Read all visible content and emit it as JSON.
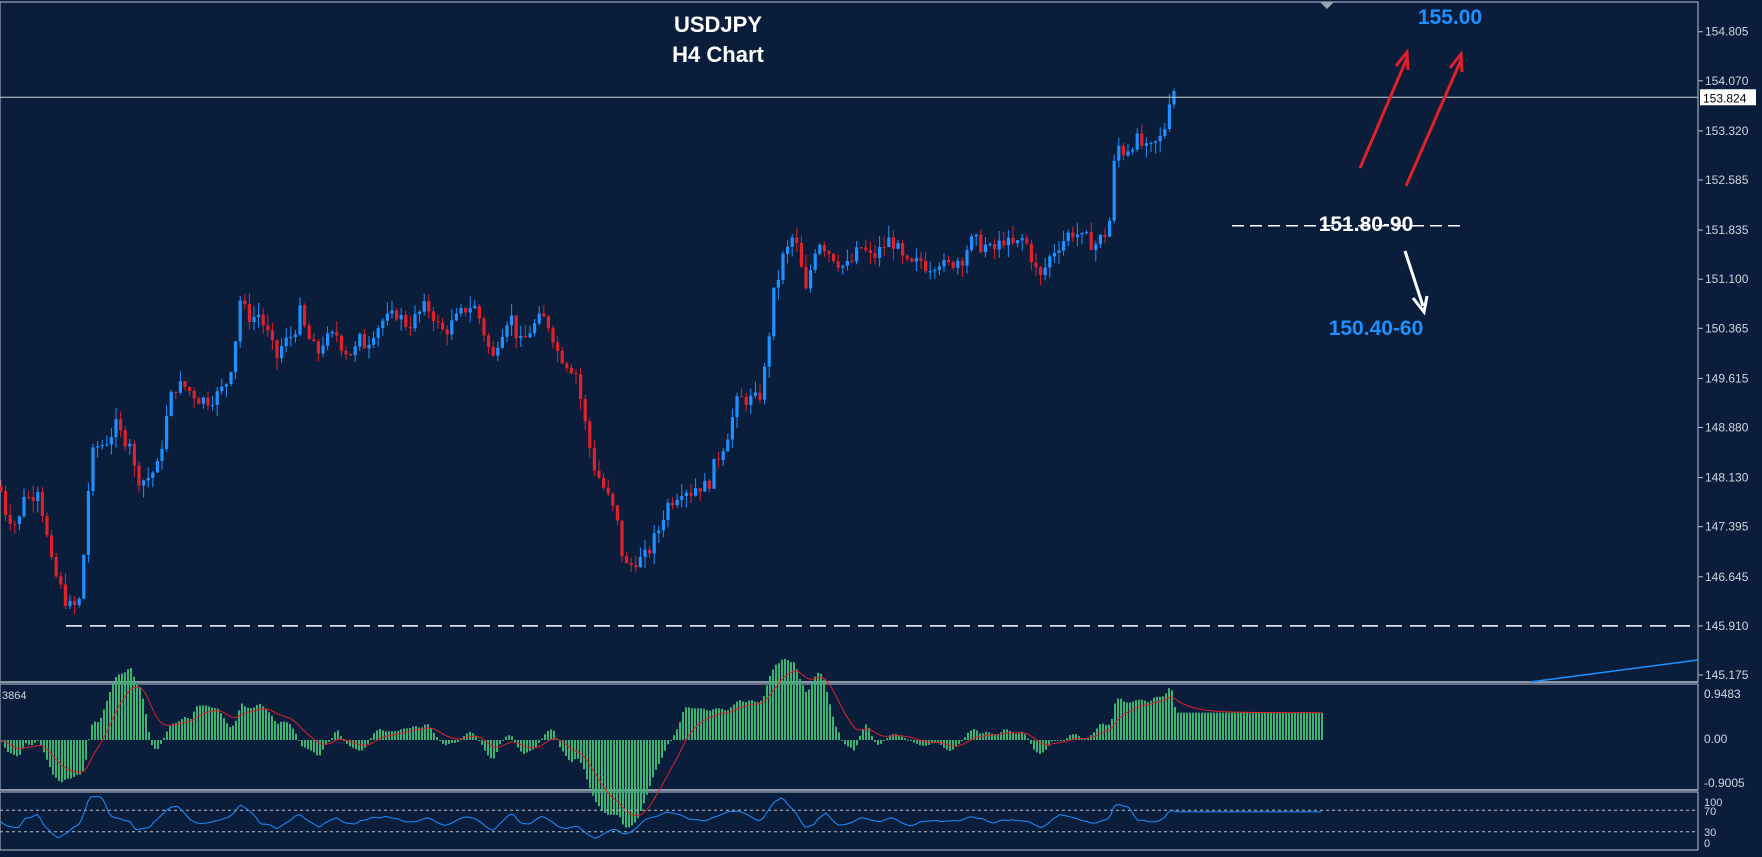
{
  "chart_data": {
    "type": "candlestick",
    "title": "USDJPY",
    "subtitle": "H4 Chart",
    "price_axis": {
      "ticks": [
        "154.805",
        "154.070",
        "153.320",
        "152.585",
        "151.835",
        "151.100",
        "150.365",
        "149.615",
        "148.880",
        "148.130",
        "147.395",
        "146.645",
        "145.910",
        "145.175"
      ],
      "range": [
        145.07,
        155.25
      ],
      "current_price": "153.824"
    },
    "annotations": {
      "target_up": "155.00",
      "support": "151.80-90",
      "target_down": "150.40-60"
    },
    "levels": {
      "support": 151.9,
      "low": 145.91,
      "current": 153.824
    },
    "series": {
      "close_path": [
        [
          0,
          148.0
        ],
        [
          6,
          147.6
        ],
        [
          12,
          147.5
        ],
        [
          18,
          147.4
        ],
        [
          24,
          147.9
        ],
        [
          30,
          147.8
        ],
        [
          38,
          148.0
        ],
        [
          45,
          147.4
        ],
        [
          52,
          146.8
        ],
        [
          60,
          146.5
        ],
        [
          68,
          146.2
        ],
        [
          75,
          146.2
        ],
        [
          80,
          146.3
        ],
        [
          85,
          147.2
        ],
        [
          90,
          148.3
        ],
        [
          95,
          148.6
        ],
        [
          100,
          148.6
        ],
        [
          108,
          148.7
        ],
        [
          116,
          148.9
        ],
        [
          124,
          148.7
        ],
        [
          130,
          148.7
        ],
        [
          135,
          148.2
        ],
        [
          140,
          148.1
        ],
        [
          146,
          148.1
        ],
        [
          152,
          148.2
        ],
        [
          158,
          148.3
        ],
        [
          164,
          148.8
        ],
        [
          170,
          149.3
        ],
        [
          176,
          149.5
        ],
        [
          184,
          149.5
        ],
        [
          192,
          149.4
        ],
        [
          200,
          149.3
        ],
        [
          210,
          149.3
        ],
        [
          220,
          149.4
        ],
        [
          228,
          149.6
        ],
        [
          234,
          150.0
        ],
        [
          240,
          150.8
        ],
        [
          246,
          150.6
        ],
        [
          252,
          150.5
        ],
        [
          258,
          150.6
        ],
        [
          264,
          150.4
        ],
        [
          270,
          150.2
        ],
        [
          276,
          149.9
        ],
        [
          282,
          150.1
        ],
        [
          288,
          150.2
        ],
        [
          294,
          150.3
        ],
        [
          300,
          150.6
        ],
        [
          306,
          150.3
        ],
        [
          312,
          150.1
        ],
        [
          318,
          150.0
        ],
        [
          324,
          150.2
        ],
        [
          330,
          150.2
        ],
        [
          336,
          150.3
        ],
        [
          342,
          150.1
        ],
        [
          348,
          150.0
        ],
        [
          354,
          150.0
        ],
        [
          360,
          150.2
        ],
        [
          366,
          150.1
        ],
        [
          372,
          150.3
        ],
        [
          378,
          150.4
        ],
        [
          384,
          150.5
        ],
        [
          390,
          150.5
        ],
        [
          396,
          150.6
        ],
        [
          402,
          150.5
        ],
        [
          408,
          150.4
        ],
        [
          414,
          150.5
        ],
        [
          420,
          150.6
        ],
        [
          426,
          150.7
        ],
        [
          432,
          150.6
        ],
        [
          438,
          150.4
        ],
        [
          444,
          150.3
        ],
        [
          450,
          150.4
        ],
        [
          456,
          150.5
        ],
        [
          462,
          150.6
        ],
        [
          468,
          150.7
        ],
        [
          474,
          150.7
        ],
        [
          480,
          150.5
        ],
        [
          486,
          150.2
        ],
        [
          490,
          150.0
        ],
        [
          494,
          149.9
        ],
        [
          498,
          150.2
        ],
        [
          504,
          150.4
        ],
        [
          510,
          150.6
        ],
        [
          516,
          150.3
        ],
        [
          522,
          150.1
        ],
        [
          528,
          150.3
        ],
        [
          534,
          150.4
        ],
        [
          540,
          150.5
        ],
        [
          546,
          150.5
        ],
        [
          552,
          150.3
        ],
        [
          558,
          150.0
        ],
        [
          564,
          149.9
        ],
        [
          570,
          149.8
        ],
        [
          576,
          149.7
        ],
        [
          582,
          149.2
        ],
        [
          588,
          148.7
        ],
        [
          594,
          148.3
        ],
        [
          600,
          148.1
        ],
        [
          606,
          147.9
        ],
        [
          612,
          147.7
        ],
        [
          618,
          147.4
        ],
        [
          622,
          147.0
        ],
        [
          626,
          146.8
        ],
        [
          630,
          146.8
        ],
        [
          636,
          146.9
        ],
        [
          642,
          146.9
        ],
        [
          648,
          147.0
        ],
        [
          654,
          147.2
        ],
        [
          660,
          147.4
        ],
        [
          666,
          147.7
        ],
        [
          672,
          147.8
        ],
        [
          678,
          147.9
        ],
        [
          684,
          148.0
        ],
        [
          690,
          147.9
        ],
        [
          696,
          148.0
        ],
        [
          702,
          148.0
        ],
        [
          708,
          148.0
        ],
        [
          714,
          148.3
        ],
        [
          720,
          148.5
        ],
        [
          726,
          148.7
        ],
        [
          732,
          149.0
        ],
        [
          738,
          149.3
        ],
        [
          744,
          149.3
        ],
        [
          750,
          149.3
        ],
        [
          756,
          149.3
        ],
        [
          762,
          149.4
        ],
        [
          766,
          149.9
        ],
        [
          770,
          150.4
        ],
        [
          774,
          150.9
        ],
        [
          778,
          151.1
        ],
        [
          782,
          151.4
        ],
        [
          786,
          151.5
        ],
        [
          790,
          151.6
        ],
        [
          794,
          151.8
        ],
        [
          798,
          151.5
        ],
        [
          802,
          151.2
        ],
        [
          806,
          150.9
        ],
        [
          810,
          151.2
        ],
        [
          814,
          151.5
        ],
        [
          818,
          151.7
        ],
        [
          824,
          151.6
        ],
        [
          830,
          151.5
        ],
        [
          836,
          151.4
        ],
        [
          842,
          151.3
        ],
        [
          848,
          151.3
        ],
        [
          854,
          151.4
        ],
        [
          860,
          151.6
        ],
        [
          866,
          151.5
        ],
        [
          872,
          151.4
        ],
        [
          878,
          151.5
        ],
        [
          884,
          151.6
        ],
        [
          890,
          151.7
        ],
        [
          896,
          151.6
        ],
        [
          902,
          151.4
        ],
        [
          908,
          151.3
        ],
        [
          914,
          151.3
        ],
        [
          920,
          151.4
        ],
        [
          926,
          151.3
        ],
        [
          932,
          151.3
        ],
        [
          938,
          151.4
        ],
        [
          944,
          151.3
        ],
        [
          950,
          151.3
        ],
        [
          956,
          151.4
        ],
        [
          962,
          151.4
        ],
        [
          968,
          151.6
        ],
        [
          974,
          151.7
        ],
        [
          980,
          151.6
        ],
        [
          986,
          151.6
        ],
        [
          992,
          151.5
        ],
        [
          998,
          151.6
        ],
        [
          1004,
          151.7
        ],
        [
          1010,
          151.6
        ],
        [
          1016,
          151.6
        ],
        [
          1022,
          151.7
        ],
        [
          1028,
          151.6
        ],
        [
          1034,
          151.3
        ],
        [
          1040,
          151.1
        ],
        [
          1046,
          151.3
        ],
        [
          1052,
          151.5
        ],
        [
          1058,
          151.6
        ],
        [
          1064,
          151.7
        ],
        [
          1070,
          151.8
        ],
        [
          1076,
          151.8
        ],
        [
          1082,
          151.7
        ],
        [
          1088,
          151.7
        ],
        [
          1094,
          151.6
        ],
        [
          1100,
          151.7
        ],
        [
          1106,
          151.8
        ],
        [
          1110,
          152.0
        ],
        [
          1114,
          152.8
        ],
        [
          1118,
          153.1
        ],
        [
          1124,
          153.0
        ],
        [
          1130,
          153.1
        ],
        [
          1136,
          153.2
        ],
        [
          1142,
          153.1
        ],
        [
          1148,
          153.0
        ],
        [
          1154,
          153.1
        ],
        [
          1160,
          153.2
        ],
        [
          1164,
          153.3
        ],
        [
          1168,
          153.7
        ],
        [
          1172,
          154.0
        ],
        [
          1176,
          153.9
        ]
      ],
      "macd_main": {
        "max_label": "0.9483",
        "zero_label": "0.00",
        "min_label": "-0.9005",
        "partial_label": "3864"
      },
      "rsi": {
        "levels": [
          "100",
          "70",
          "30",
          "0"
        ]
      }
    }
  }
}
